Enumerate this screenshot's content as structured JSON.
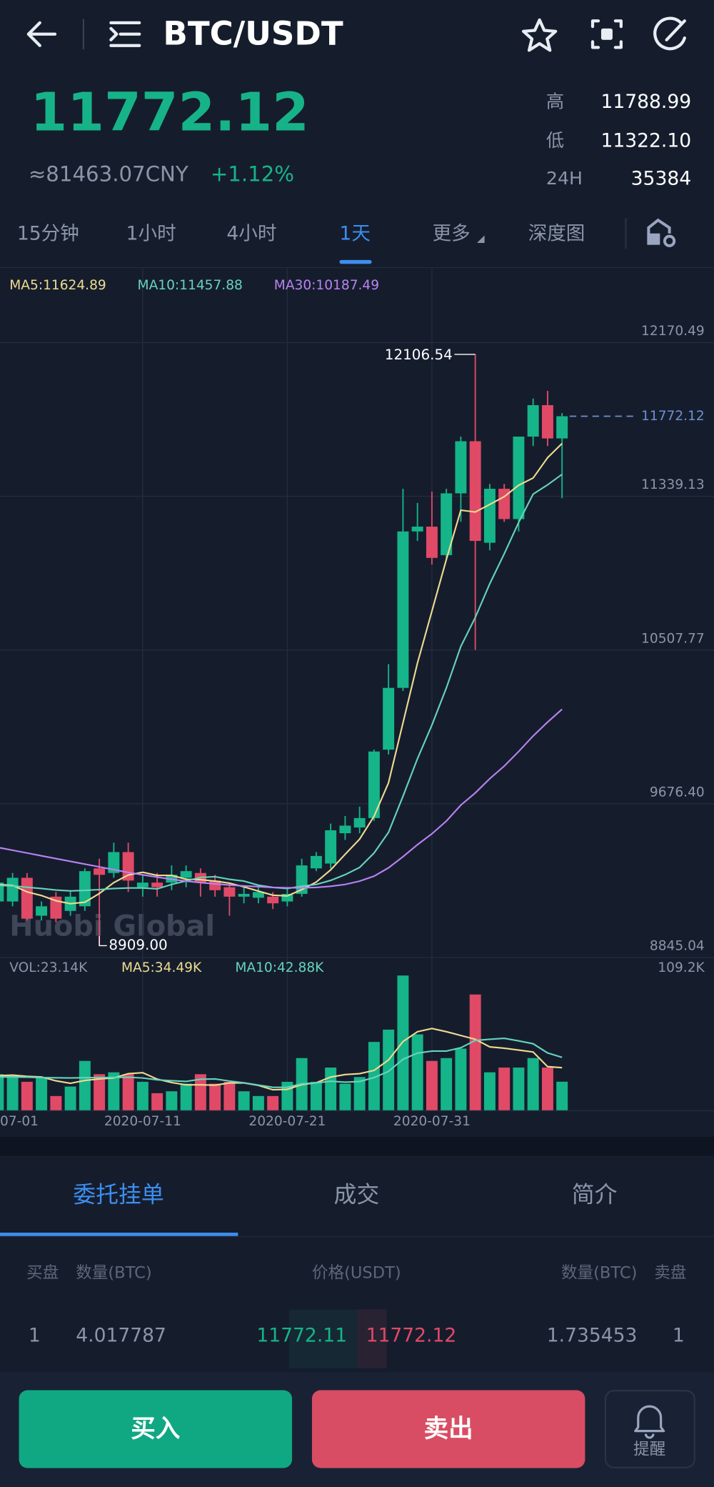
{
  "header": {
    "pair": "BTC/USDT"
  },
  "ticker": {
    "price": "11772.12",
    "cny": "≈81463.07CNY",
    "change": "+1.12%",
    "high_label": "高",
    "high": "11788.99",
    "low_label": "低",
    "low": "11322.10",
    "vol_label": "24H",
    "vol": "35384"
  },
  "tabs": [
    "15分钟",
    "1小时",
    "4小时",
    "1天",
    "更多",
    "深度图"
  ],
  "chart_data": [
    {
      "type": "candlestick",
      "watermark": "Huobi Global",
      "low_label": "8909.00",
      "categories": [
        "07-01",
        null,
        null,
        null,
        null,
        null,
        null,
        null,
        null,
        null,
        "2020-07-11",
        null,
        null,
        null,
        null,
        null,
        null,
        null,
        null,
        null,
        "2020-07-21",
        null,
        null,
        null,
        null,
        null,
        null,
        null,
        null,
        null,
        "2020-07-31",
        null,
        null,
        null,
        null,
        null,
        null,
        null,
        null,
        null
      ],
      "open": [
        9148,
        9148,
        9276,
        9071,
        9174,
        9097,
        9122,
        9327,
        9302,
        9415,
        9225,
        9250,
        9250,
        9276,
        9302,
        9261,
        9225,
        9174,
        9168,
        9174,
        9148,
        9189,
        9327,
        9353,
        9517,
        9548,
        9599,
        9969,
        10303,
        11149,
        11175,
        11021,
        11355,
        11637,
        11088,
        11380,
        11216,
        11662,
        11832,
        11652
      ],
      "high": [
        9276,
        9302,
        9302,
        9148,
        9199,
        9209,
        9327,
        9379,
        9466,
        9466,
        9292,
        9302,
        9343,
        9343,
        9327,
        9292,
        9250,
        9225,
        9230,
        9199,
        9225,
        9379,
        9415,
        9569,
        9610,
        9661,
        9969,
        10431,
        11380,
        11303,
        11365,
        11380,
        11662,
        12106.54,
        11406,
        11406,
        11662,
        11868,
        11909,
        11788.99
      ],
      "low": [
        9122,
        9122,
        9045,
        9045,
        9035,
        9071,
        9097,
        8909,
        9276,
        9199,
        9174,
        9174,
        9209,
        9225,
        9174,
        9174,
        9071,
        9138,
        9138,
        9107,
        9122,
        9174,
        9312,
        9327,
        9481,
        9517,
        9584,
        9943,
        10287,
        11098,
        10970,
        10995,
        11201,
        10508,
        11047,
        11201,
        11149,
        11611,
        11611,
        11329
      ],
      "close": [
        9250,
        9276,
        9055,
        9122,
        9055,
        9174,
        9312,
        9292,
        9415,
        9261,
        9250,
        9225,
        9292,
        9312,
        9250,
        9209,
        9174,
        9189,
        9199,
        9138,
        9189,
        9343,
        9394,
        9533,
        9558,
        9599,
        9959,
        10303,
        11149,
        11175,
        11006,
        11355,
        11637,
        11098,
        11380,
        11216,
        11662,
        11832,
        11652,
        11772.12
      ],
      "up_color": "#16b489",
      "down_color": "#e04a66",
      "series": [
        {
          "name": "MA5:11624.89",
          "color": "#efdb8f",
          "values": [
            9240,
            9235,
            9200,
            9180,
            9152,
            9136,
            9144,
            9191,
            9250,
            9291,
            9306,
            9289,
            9289,
            9268,
            9266,
            9258,
            9247,
            9227,
            9204,
            9182,
            9178,
            9212,
            9253,
            9319,
            9403,
            9485,
            9609,
            9790,
            10114,
            10437,
            10718,
            10998,
            11264,
            11254,
            11295,
            11337,
            11399,
            11438,
            11548,
            11624.89
          ]
        },
        {
          "name": "MA10:11457.88",
          "color": "#66d3bb",
          "values": [
            9235,
            9232,
            9225,
            9218,
            9210,
            9205,
            9208,
            9212,
            9218,
            9221,
            9221,
            9216,
            9240,
            9259,
            9278,
            9282,
            9268,
            9258,
            9236,
            9224,
            9218,
            9230,
            9240,
            9262,
            9293,
            9332,
            9410,
            9522,
            9717,
            9920,
            10102,
            10303,
            10527,
            10684,
            10866,
            11028,
            11198,
            11351,
            11401,
            11457.88
          ]
        },
        {
          "name": "MA30:10187.49",
          "color": "#bb82f2",
          "values": [
            9440,
            9425,
            9410,
            9395,
            9380,
            9365,
            9350,
            9335,
            9320,
            9305,
            9292,
            9280,
            9268,
            9258,
            9250,
            9243,
            9237,
            9232,
            9228,
            9224,
            9222,
            9222,
            9224,
            9230,
            9240,
            9258,
            9285,
            9330,
            9390,
            9455,
            9514,
            9583,
            9669,
            9735,
            9812,
            9880,
            9959,
            10043,
            10118,
            10187.49
          ]
        }
      ],
      "ylim": [
        8845.04,
        12570.77
      ],
      "yticks": [
        12170.49,
        11339.13,
        10507.77,
        {
          "value": 9676.4,
          "label": "9676.40"
        },
        8845.04
      ],
      "grid": true,
      "last_price_color": "#6f8fd0"
    },
    {
      "type": "volume",
      "series": [
        {
          "name": "VOL:23.14K",
          "type": "bar",
          "values": [
            29222,
            28453,
            23070,
            26915,
            11535,
            19225,
            39988,
            29222,
            30760,
            29222,
            23070,
            13842,
            15380,
            21532,
            29222,
            21532,
            23070,
            15380,
            11535,
            11535,
            23070,
            42295,
            23070,
            34605,
            21532,
            26915,
            55368,
            65365,
            109198,
            61520,
            39988,
            42295,
            49985,
            93818,
            30760,
            34605,
            34605,
            42295,
            34605,
            23140
          ]
        },
        {
          "name": "MA5:34.49K",
          "type": "line",
          "color": "#efdb8f",
          "values": [
            28000,
            28500,
            27500,
            27000,
            23839,
            21840,
            24147,
            25377,
            26146,
            29683,
            30452,
            25223,
            22455,
            20609,
            20609,
            20302,
            22147,
            22147,
            20148,
            16610,
            16918,
            20763,
            22301,
            26915,
            28914,
            29683,
            32298,
            40757,
            55676,
            63673,
            66288,
            63673,
            60597,
            57521,
            51369,
            50293,
            48755,
            47217,
            35374,
            34490
          ]
        },
        {
          "name": "MA10:42.88K",
          "type": "line",
          "color": "#66d3bb",
          "values": [
            27000,
            27000,
            26800,
            26500,
            26300,
            26200,
            26400,
            26500,
            26600,
            26761,
            26146,
            24685,
            23916,
            23378,
            25146,
            25377,
            23685,
            22301,
            20379,
            18610,
            18610,
            21455,
            22224,
            23531,
            22762,
            23301,
            26531,
            31529,
            41295,
            46294,
            47986,
            47986,
            50677,
            56598,
            57521,
            58290,
            56214,
            53907,
            46448,
            42880
          ]
        }
      ],
      "ylim": [
        0,
        109200
      ],
      "yticks": [
        {
          "value": 109200,
          "label": "109.2K"
        }
      ]
    }
  ],
  "order_tabs": [
    "委托挂单",
    "成交",
    "简介"
  ],
  "order_book": {
    "columns": [
      "买盘",
      "数量(BTC)",
      "价格(USDT)",
      "数量(BTC)",
      "卖盘"
    ],
    "rows": [
      [
        "1",
        "4.017787",
        "11772.11",
        "11772.12",
        "1.735453",
        "1"
      ]
    ]
  },
  "actions": {
    "buy": "买入",
    "sell": "卖出",
    "alert": "提醒"
  }
}
